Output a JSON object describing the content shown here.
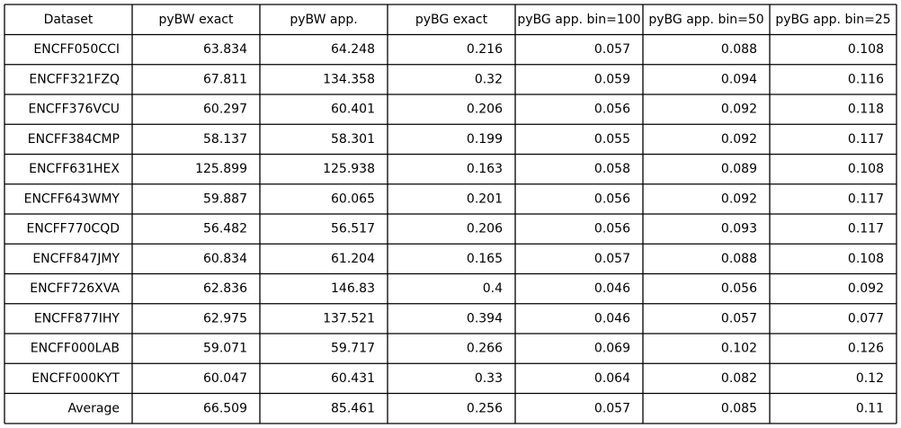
{
  "chart_data": {
    "type": "table",
    "columns": [
      "Dataset",
      "pyBW exact",
      "pyBW app.",
      "pyBG exact",
      "pyBG app. bin=100",
      "pyBG app. bin=50",
      "pyBG app. bin=25"
    ],
    "rows": [
      [
        "ENCFF050CCI",
        "63.834",
        "64.248",
        "0.216",
        "0.057",
        "0.088",
        "0.108"
      ],
      [
        "ENCFF321FZQ",
        "67.811",
        "134.358",
        "0.32",
        "0.059",
        "0.094",
        "0.116"
      ],
      [
        "ENCFF376VCU",
        "60.297",
        "60.401",
        "0.206",
        "0.056",
        "0.092",
        "0.118"
      ],
      [
        "ENCFF384CMP",
        "58.137",
        "58.301",
        "0.199",
        "0.055",
        "0.092",
        "0.117"
      ],
      [
        "ENCFF631HEX",
        "125.899",
        "125.938",
        "0.163",
        "0.058",
        "0.089",
        "0.108"
      ],
      [
        "ENCFF643WMY",
        "59.887",
        "60.065",
        "0.201",
        "0.056",
        "0.092",
        "0.117"
      ],
      [
        "ENCFF770CQD",
        "56.482",
        "56.517",
        "0.206",
        "0.056",
        "0.093",
        "0.117"
      ],
      [
        "ENCFF847JMY",
        "60.834",
        "61.204",
        "0.165",
        "0.057",
        "0.088",
        "0.108"
      ],
      [
        "ENCFF726XVA",
        "62.836",
        "146.83",
        "0.4",
        "0.046",
        "0.056",
        "0.092"
      ],
      [
        "ENCFF877IHY",
        "62.975",
        "137.521",
        "0.394",
        "0.046",
        "0.057",
        "0.077"
      ],
      [
        "ENCFF000LAB",
        "59.071",
        "59.717",
        "0.266",
        "0.069",
        "0.102",
        "0.126"
      ],
      [
        "ENCFF000KYT",
        "60.047",
        "60.431",
        "0.33",
        "0.064",
        "0.082",
        "0.12"
      ],
      [
        "Average",
        "66.509",
        "85.461",
        "0.256",
        "0.057",
        "0.085",
        "0.11"
      ]
    ],
    "colors": {
      "grid": "#000000",
      "text": "#000000",
      "background": "#ffffff"
    }
  }
}
